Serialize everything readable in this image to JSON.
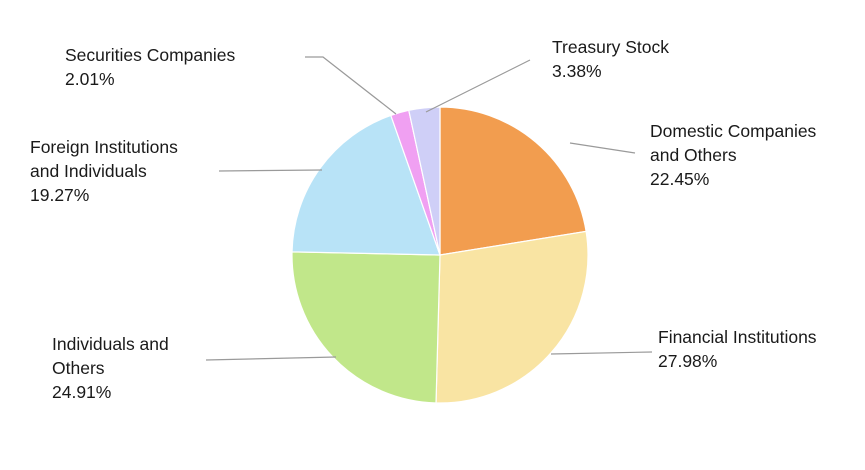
{
  "chart_data": {
    "type": "pie",
    "start_angle_deg": 0,
    "direction": "clockwise",
    "slices": [
      {
        "label_lines": [
          "Domestic Companies",
          "and Others"
        ],
        "value": 22.45,
        "value_label": "22.45%",
        "color": "#f29d4f"
      },
      {
        "label_lines": [
          "Financial Institutions"
        ],
        "value": 27.98,
        "value_label": "27.98%",
        "color": "#f9e4a3"
      },
      {
        "label_lines": [
          "Individuals and",
          "Others"
        ],
        "value": 24.91,
        "value_label": "24.91%",
        "color": "#c1e78a"
      },
      {
        "label_lines": [
          "Foreign Institutions",
          "and Individuals"
        ],
        "value": 19.27,
        "value_label": "19.27%",
        "color": "#b8e3f7"
      },
      {
        "label_lines": [
          "Securities Companies"
        ],
        "value": 2.01,
        "value_label": "2.01%",
        "color": "#f0a0f2"
      },
      {
        "label_lines": [
          "Treasury Stock"
        ],
        "value": 3.38,
        "value_label": "3.38%",
        "color": "#cfcff7"
      }
    ],
    "leader_line_color": "#9a9a9a",
    "legend": "none"
  }
}
